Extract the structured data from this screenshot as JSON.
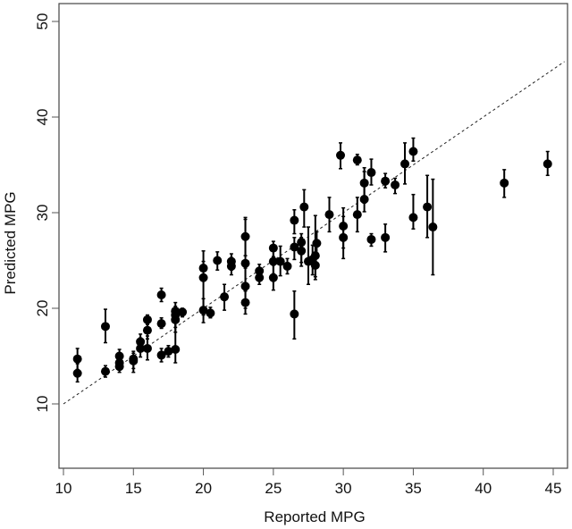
{
  "chart_data": {
    "type": "scatter",
    "title": "",
    "xlabel": "Reported MPG",
    "ylabel": "Predicted MPG",
    "xlim": [
      10,
      45.8
    ],
    "ylim": [
      3.5,
      52
    ],
    "x_ticks": [
      10,
      15,
      20,
      25,
      30,
      35,
      40,
      45
    ],
    "y_ticks": [
      10,
      20,
      30,
      40,
      50
    ],
    "grid": false,
    "legend": null,
    "reference_line": {
      "type": "identity",
      "style": "dashed",
      "from": [
        10,
        10
      ],
      "to": [
        45.8,
        45.8
      ]
    },
    "points": [
      {
        "x": 11.0,
        "y": 14.7,
        "lo": 13.6,
        "hi": 15.8
      },
      {
        "x": 11.0,
        "y": 13.2,
        "lo": 12.3,
        "hi": 14.2
      },
      {
        "x": 13.0,
        "y": 18.1,
        "lo": 16.4,
        "hi": 19.9
      },
      {
        "x": 13.0,
        "y": 13.4,
        "lo": 12.8,
        "hi": 14.0
      },
      {
        "x": 14.0,
        "y": 15.0,
        "lo": 14.3,
        "hi": 15.7
      },
      {
        "x": 14.0,
        "y": 14.3,
        "lo": 13.6,
        "hi": 15.0
      },
      {
        "x": 14.0,
        "y": 13.9,
        "lo": 13.3,
        "hi": 14.6
      },
      {
        "x": 15.0,
        "y": 14.7,
        "lo": 13.7,
        "hi": 15.5
      },
      {
        "x": 15.0,
        "y": 14.5,
        "lo": 13.3,
        "hi": 15.3
      },
      {
        "x": 15.5,
        "y": 16.5,
        "lo": 15.6,
        "hi": 17.3
      },
      {
        "x": 15.5,
        "y": 15.8,
        "lo": 14.9,
        "hi": 16.9
      },
      {
        "x": 16.0,
        "y": 18.8,
        "lo": 18.3,
        "hi": 19.3
      },
      {
        "x": 16.0,
        "y": 17.7,
        "lo": 16.8,
        "hi": 18.6
      },
      {
        "x": 16.0,
        "y": 15.8,
        "lo": 14.6,
        "hi": 17.1
      },
      {
        "x": 17.0,
        "y": 21.4,
        "lo": 20.7,
        "hi": 22.1
      },
      {
        "x": 17.0,
        "y": 18.4,
        "lo": 17.9,
        "hi": 19.0
      },
      {
        "x": 17.0,
        "y": 15.1,
        "lo": 14.4,
        "hi": 15.8
      },
      {
        "x": 17.5,
        "y": 15.5,
        "lo": 14.9,
        "hi": 16.1
      },
      {
        "x": 18.0,
        "y": 15.7,
        "lo": 14.3,
        "hi": 18.7
      },
      {
        "x": 18.0,
        "y": 18.8,
        "lo": 17.5,
        "hi": 19.5
      },
      {
        "x": 18.0,
        "y": 19.3,
        "lo": 18.0,
        "hi": 20.2
      },
      {
        "x": 18.0,
        "y": 19.7,
        "lo": 18.8,
        "hi": 20.6
      },
      {
        "x": 18.5,
        "y": 19.6,
        "lo": 19.1,
        "hi": 20.0
      },
      {
        "x": 20.0,
        "y": 23.2,
        "lo": 19.3,
        "hi": 26.0
      },
      {
        "x": 20.0,
        "y": 19.8,
        "lo": 18.5,
        "hi": 21.0
      },
      {
        "x": 20.0,
        "y": 24.2,
        "lo": 23.4,
        "hi": 24.9
      },
      {
        "x": 20.5,
        "y": 19.5,
        "lo": 19.0,
        "hi": 20.1
      },
      {
        "x": 21.0,
        "y": 25.0,
        "lo": 24.0,
        "hi": 25.9
      },
      {
        "x": 21.5,
        "y": 21.2,
        "lo": 19.8,
        "hi": 22.5
      },
      {
        "x": 22.0,
        "y": 24.9,
        "lo": 24.0,
        "hi": 25.7
      },
      {
        "x": 22.0,
        "y": 24.4,
        "lo": 23.5,
        "hi": 25.3
      },
      {
        "x": 23.0,
        "y": 27.5,
        "lo": 25.5,
        "hi": 29.5
      },
      {
        "x": 23.0,
        "y": 24.7,
        "lo": 20.0,
        "hi": 29.3
      },
      {
        "x": 23.0,
        "y": 22.3,
        "lo": 20.5,
        "hi": 24.2
      },
      {
        "x": 23.0,
        "y": 20.6,
        "lo": 19.4,
        "hi": 21.8
      },
      {
        "x": 24.0,
        "y": 23.9,
        "lo": 23.3,
        "hi": 24.6
      },
      {
        "x": 24.0,
        "y": 23.2,
        "lo": 22.5,
        "hi": 23.9
      },
      {
        "x": 25.0,
        "y": 26.3,
        "lo": 25.4,
        "hi": 27.0
      },
      {
        "x": 25.0,
        "y": 24.9,
        "lo": 23.6,
        "hi": 26.2
      },
      {
        "x": 25.0,
        "y": 23.2,
        "lo": 21.9,
        "hi": 24.5
      },
      {
        "x": 25.5,
        "y": 24.9,
        "lo": 23.4,
        "hi": 26.5
      },
      {
        "x": 26.0,
        "y": 24.4,
        "lo": 23.6,
        "hi": 25.2
      },
      {
        "x": 26.5,
        "y": 26.4,
        "lo": 25.1,
        "hi": 27.4
      },
      {
        "x": 26.5,
        "y": 19.4,
        "lo": 16.8,
        "hi": 21.8
      },
      {
        "x": 26.5,
        "y": 29.2,
        "lo": 27.8,
        "hi": 30.3
      },
      {
        "x": 27.0,
        "y": 26.9,
        "lo": 24.4,
        "hi": 27.8
      },
      {
        "x": 27.0,
        "y": 26.0,
        "lo": 24.8,
        "hi": 27.4
      },
      {
        "x": 27.2,
        "y": 30.6,
        "lo": 28.5,
        "hi": 32.4
      },
      {
        "x": 27.5,
        "y": 24.9,
        "lo": 22.5,
        "hi": 28.5
      },
      {
        "x": 27.8,
        "y": 25.1,
        "lo": 23.5,
        "hi": 26.6
      },
      {
        "x": 28.0,
        "y": 24.5,
        "lo": 23.3,
        "hi": 25.8
      },
      {
        "x": 28.0,
        "y": 25.5,
        "lo": 23.0,
        "hi": 29.7
      },
      {
        "x": 28.1,
        "y": 26.8,
        "lo": 25.6,
        "hi": 28.0
      },
      {
        "x": 29.0,
        "y": 29.8,
        "lo": 28.0,
        "hi": 31.6
      },
      {
        "x": 29.8,
        "y": 36.0,
        "lo": 34.6,
        "hi": 37.3
      },
      {
        "x": 30.0,
        "y": 28.6,
        "lo": 26.3,
        "hi": 30.5
      },
      {
        "x": 30.0,
        "y": 27.4,
        "lo": 25.2,
        "hi": 29.6
      },
      {
        "x": 31.0,
        "y": 35.5,
        "lo": 35.0,
        "hi": 36.1
      },
      {
        "x": 31.0,
        "y": 29.8,
        "lo": 28.0,
        "hi": 31.6
      },
      {
        "x": 31.5,
        "y": 31.4,
        "lo": 30.1,
        "hi": 34.7
      },
      {
        "x": 31.5,
        "y": 33.1,
        "lo": 31.0,
        "hi": 34.3
      },
      {
        "x": 32.0,
        "y": 34.2,
        "lo": 32.9,
        "hi": 35.6
      },
      {
        "x": 32.0,
        "y": 27.2,
        "lo": 26.5,
        "hi": 27.8
      },
      {
        "x": 33.0,
        "y": 33.3,
        "lo": 32.6,
        "hi": 34.1
      },
      {
        "x": 33.0,
        "y": 27.4,
        "lo": 25.9,
        "hi": 28.8
      },
      {
        "x": 33.7,
        "y": 32.9,
        "lo": 32.0,
        "hi": 33.6
      },
      {
        "x": 34.4,
        "y": 35.1,
        "lo": 33.0,
        "hi": 37.3
      },
      {
        "x": 35.0,
        "y": 29.5,
        "lo": 28.3,
        "hi": 31.9
      },
      {
        "x": 35.0,
        "y": 36.4,
        "lo": 35.4,
        "hi": 37.8
      },
      {
        "x": 36.0,
        "y": 30.6,
        "lo": 27.4,
        "hi": 33.9
      },
      {
        "x": 36.4,
        "y": 28.5,
        "lo": 23.5,
        "hi": 33.5
      },
      {
        "x": 41.5,
        "y": 33.1,
        "lo": 31.6,
        "hi": 34.5
      },
      {
        "x": 44.6,
        "y": 35.1,
        "lo": 33.9,
        "hi": 36.4
      }
    ]
  },
  "axes": {
    "x_title": "Reported MPG",
    "y_title": "Predicted MPG"
  },
  "colors": {
    "points": "#000000",
    "axis": "#333333",
    "reference_line": "#222222",
    "background": "#ffffff"
  }
}
